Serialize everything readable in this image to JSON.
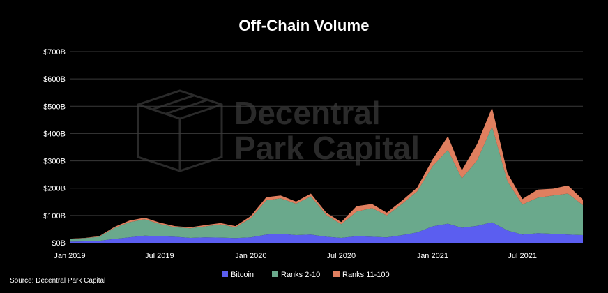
{
  "chart_data": {
    "type": "area",
    "stacked": true,
    "title": "Off-Chain Volume",
    "xlabel": "",
    "ylabel": "",
    "x_range": [
      "2019-01-01",
      "2021-10-31"
    ],
    "x_ticks": [
      {
        "date": "2019-01-01",
        "label": "Jan 2019"
      },
      {
        "date": "2019-07-01",
        "label": "Jul 2019"
      },
      {
        "date": "2020-01-01",
        "label": "Jan 2020"
      },
      {
        "date": "2020-07-01",
        "label": "Jul 2020"
      },
      {
        "date": "2021-01-01",
        "label": "Jan 2021"
      },
      {
        "date": "2021-07-01",
        "label": "Jul 2021"
      }
    ],
    "ylim": [
      0,
      700
    ],
    "y_unit": "$B",
    "y_ticks": [
      {
        "value": 0,
        "label": "$0B"
      },
      {
        "value": 100,
        "label": "$100B"
      },
      {
        "value": 200,
        "label": "$200B"
      },
      {
        "value": 300,
        "label": "$300B"
      },
      {
        "value": 400,
        "label": "$400B"
      },
      {
        "value": 500,
        "label": "$500B"
      },
      {
        "value": 600,
        "label": "$600B"
      },
      {
        "value": 700,
        "label": "$700B"
      }
    ],
    "grid": true,
    "legend_position": "bottom",
    "series": [
      {
        "name": "Bitcoin",
        "color": "#5b5ef0",
        "points": [
          [
            "2019-01-01",
            4
          ],
          [
            "2019-02-01",
            5
          ],
          [
            "2019-03-01",
            7
          ],
          [
            "2019-04-01",
            14
          ],
          [
            "2019-05-01",
            20
          ],
          [
            "2019-06-01",
            26
          ],
          [
            "2019-07-01",
            24
          ],
          [
            "2019-08-01",
            22
          ],
          [
            "2019-09-01",
            18
          ],
          [
            "2019-10-01",
            20
          ],
          [
            "2019-11-01",
            19
          ],
          [
            "2019-12-01",
            17
          ],
          [
            "2020-01-01",
            20
          ],
          [
            "2020-02-01",
            30
          ],
          [
            "2020-03-01",
            33
          ],
          [
            "2020-04-01",
            28
          ],
          [
            "2020-05-01",
            30
          ],
          [
            "2020-06-01",
            22
          ],
          [
            "2020-07-01",
            18
          ],
          [
            "2020-08-01",
            24
          ],
          [
            "2020-09-01",
            22
          ],
          [
            "2020-10-01",
            20
          ],
          [
            "2020-11-01",
            28
          ],
          [
            "2020-12-01",
            38
          ],
          [
            "2021-01-01",
            60
          ],
          [
            "2021-02-01",
            70
          ],
          [
            "2021-03-01",
            55
          ],
          [
            "2021-04-01",
            62
          ],
          [
            "2021-05-01",
            75
          ],
          [
            "2021-06-01",
            45
          ],
          [
            "2021-07-01",
            30
          ],
          [
            "2021-08-01",
            35
          ],
          [
            "2021-09-01",
            33
          ],
          [
            "2021-10-01",
            30
          ],
          [
            "2021-10-31",
            28
          ]
        ]
      },
      {
        "name": "Ranks 2-10",
        "color": "#6aa98c",
        "points": [
          [
            "2019-01-01",
            10
          ],
          [
            "2019-02-01",
            12
          ],
          [
            "2019-03-01",
            15
          ],
          [
            "2019-04-01",
            40
          ],
          [
            "2019-05-01",
            55
          ],
          [
            "2019-06-01",
            60
          ],
          [
            "2019-07-01",
            45
          ],
          [
            "2019-08-01",
            35
          ],
          [
            "2019-09-01",
            35
          ],
          [
            "2019-10-01",
            40
          ],
          [
            "2019-11-01",
            48
          ],
          [
            "2019-12-01",
            40
          ],
          [
            "2020-01-01",
            70
          ],
          [
            "2020-02-01",
            125
          ],
          [
            "2020-03-01",
            130
          ],
          [
            "2020-04-01",
            115
          ],
          [
            "2020-05-01",
            140
          ],
          [
            "2020-06-01",
            80
          ],
          [
            "2020-07-01",
            50
          ],
          [
            "2020-08-01",
            90
          ],
          [
            "2020-09-01",
            105
          ],
          [
            "2020-10-01",
            80
          ],
          [
            "2020-11-01",
            115
          ],
          [
            "2020-12-01",
            150
          ],
          [
            "2021-01-01",
            220
          ],
          [
            "2021-02-01",
            270
          ],
          [
            "2021-03-01",
            180
          ],
          [
            "2021-04-01",
            240
          ],
          [
            "2021-05-01",
            350
          ],
          [
            "2021-06-01",
            180
          ],
          [
            "2021-07-01",
            110
          ],
          [
            "2021-08-01",
            130
          ],
          [
            "2021-09-01",
            140
          ],
          [
            "2021-10-01",
            150
          ],
          [
            "2021-10-31",
            110
          ]
        ]
      },
      {
        "name": "Ranks 11-100",
        "color": "#e07f5f",
        "points": [
          [
            "2019-01-01",
            1
          ],
          [
            "2019-02-01",
            1
          ],
          [
            "2019-03-01",
            2
          ],
          [
            "2019-04-01",
            4
          ],
          [
            "2019-05-01",
            6
          ],
          [
            "2019-06-01",
            6
          ],
          [
            "2019-07-01",
            5
          ],
          [
            "2019-08-01",
            4
          ],
          [
            "2019-09-01",
            4
          ],
          [
            "2019-10-01",
            5
          ],
          [
            "2019-11-01",
            5
          ],
          [
            "2019-12-01",
            4
          ],
          [
            "2020-01-01",
            8
          ],
          [
            "2020-02-01",
            12
          ],
          [
            "2020-03-01",
            10
          ],
          [
            "2020-04-01",
            8
          ],
          [
            "2020-05-01",
            10
          ],
          [
            "2020-06-01",
            8
          ],
          [
            "2020-07-01",
            8
          ],
          [
            "2020-08-01",
            20
          ],
          [
            "2020-09-01",
            15
          ],
          [
            "2020-10-01",
            10
          ],
          [
            "2020-11-01",
            12
          ],
          [
            "2020-12-01",
            14
          ],
          [
            "2021-01-01",
            25
          ],
          [
            "2021-02-01",
            50
          ],
          [
            "2021-03-01",
            30
          ],
          [
            "2021-04-01",
            60
          ],
          [
            "2021-05-01",
            70
          ],
          [
            "2021-06-01",
            30
          ],
          [
            "2021-07-01",
            20
          ],
          [
            "2021-08-01",
            30
          ],
          [
            "2021-09-01",
            25
          ],
          [
            "2021-10-01",
            30
          ],
          [
            "2021-10-31",
            20
          ]
        ]
      }
    ]
  },
  "source": "Source: Decentral Park Capital",
  "watermark": {
    "line1": "Decentral",
    "line2": "Park Capital",
    "logo_icon": "cube-logo-icon"
  }
}
